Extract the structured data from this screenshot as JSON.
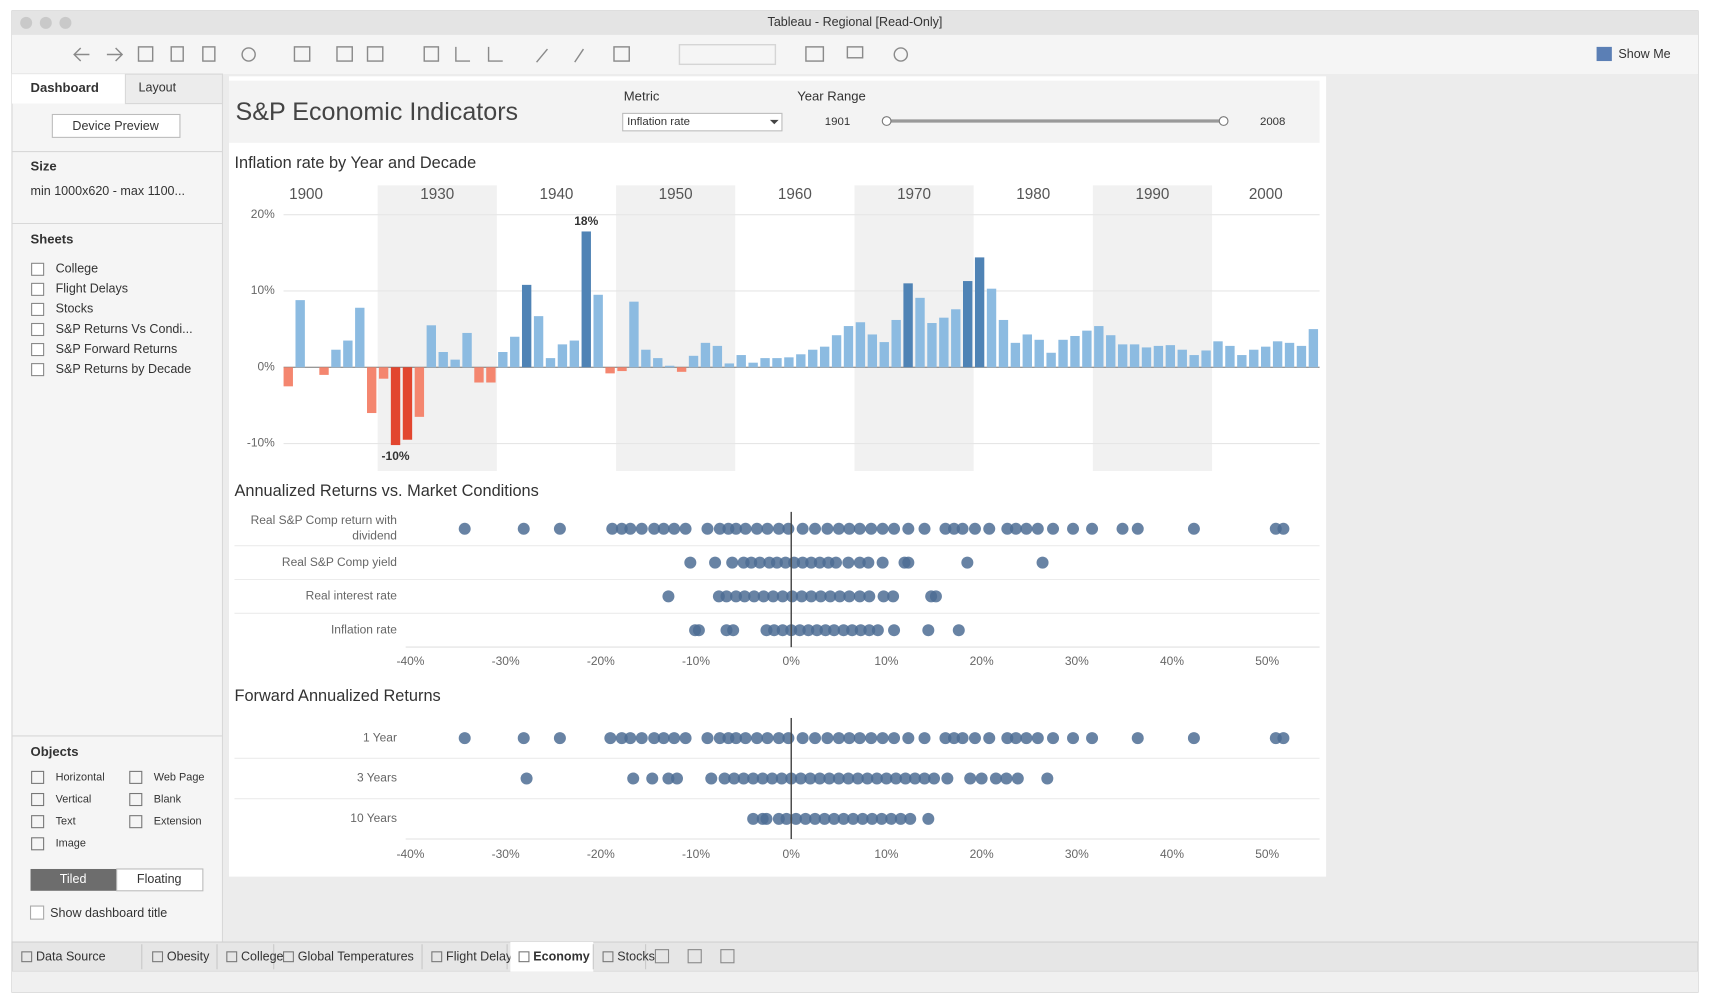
{
  "window": {
    "title": "Tableau - Regional [Read-Only]",
    "show_me": "Show Me"
  },
  "sidebar": {
    "tabs": [
      "Dashboard",
      "Layout"
    ],
    "device_preview": "Device Preview",
    "size_heading": "Size",
    "size_value": "min 1000x620 - max 1100...",
    "sheets_heading": "Sheets",
    "sheets": [
      "College",
      "Flight Delays",
      "Stocks",
      "S&P Returns Vs Condi...",
      "S&P Forward Returns",
      "S&P Returns by Decade"
    ],
    "objects_heading": "Objects",
    "objects": [
      "Horizontal",
      "Web Page",
      "Vertical",
      "Blank",
      "Text",
      "Extension",
      "Image"
    ],
    "modes": [
      "Tiled",
      "Floating"
    ],
    "show_title": "Show dashboard title"
  },
  "dashboard": {
    "title": "S&P Economic Indicators",
    "metric_label": "Metric",
    "metric_value": "Inflation rate",
    "year_range_label": "Year Range",
    "year_range": [
      1901,
      2008
    ]
  },
  "chart_data": [
    {
      "type": "bar",
      "title": "Inflation rate by Year and Decade",
      "ylim": [
        -13.6,
        21.7
      ],
      "yticks": [
        {
          "value": -10,
          "label": "-10%"
        },
        {
          "value": 0,
          "label": "0%"
        },
        {
          "value": 10,
          "label": "10%"
        },
        {
          "value": 20,
          "label": "20%"
        }
      ],
      "grid": true,
      "decades": [
        {
          "label": "1900",
          "values": [
            null,
            null,
            -2.5,
            8.8,
            null,
            -1,
            2.3,
            3.5,
            7.8,
            -6
          ],
          "colors": [
            null,
            null,
            "#f4866f",
            "#8cbbe1",
            null,
            "#f4866f",
            "#8cbbe1",
            "#8cbbe1",
            "#8cbbe1",
            "#f4866f"
          ]
        },
        {
          "label": "1930",
          "values": [
            -1.5,
            -10.2,
            -9.5,
            -6.5,
            5.5,
            2,
            1,
            4.5,
            -2,
            -2
          ],
          "colors": [
            "#f4866f",
            "#e2462f",
            "#e2462f",
            "#f4866f",
            "#8cbbe1",
            "#8cbbe1",
            "#8cbbe1",
            "#8cbbe1",
            "#f4866f",
            "#f4866f"
          ],
          "value_labels": [
            null,
            "-10%",
            null,
            null,
            null,
            null,
            null,
            null,
            null,
            null
          ]
        },
        {
          "label": "1940",
          "values": [
            2,
            4,
            10.8,
            6.7,
            1.2,
            3,
            3.5,
            17.8,
            9.5,
            -0.8
          ],
          "colors": [
            "#8cbbe1",
            "#8cbbe1",
            "#4f83b5",
            "#8cbbe1",
            "#8cbbe1",
            "#8cbbe1",
            "#8cbbe1",
            "#4f83b5",
            "#8cbbe1",
            "#f4866f"
          ],
          "value_labels": [
            null,
            null,
            null,
            null,
            null,
            null,
            null,
            "18%",
            null,
            null
          ]
        },
        {
          "label": "1950",
          "values": [
            -0.5,
            8.6,
            2.3,
            1.2,
            0.2,
            -0.6,
            1.5,
            3.2,
            2.8,
            0.5
          ],
          "colors": [
            "#f4866f",
            "#8cbbe1",
            "#8cbbe1",
            "#8cbbe1",
            "#8cbbe1",
            "#f4866f",
            "#8cbbe1",
            "#8cbbe1",
            "#8cbbe1",
            "#8cbbe1"
          ]
        },
        {
          "label": "1960",
          "values": [
            1.6,
            0.6,
            1.2,
            1.2,
            1.3,
            1.7,
            2.3,
            2.7,
            4.2,
            5.4
          ],
          "colors": [
            "#8cbbe1",
            "#8cbbe1",
            "#8cbbe1",
            "#8cbbe1",
            "#8cbbe1",
            "#8cbbe1",
            "#8cbbe1",
            "#8cbbe1",
            "#8cbbe1",
            "#8cbbe1"
          ]
        },
        {
          "label": "1970",
          "values": [
            5.9,
            4.3,
            3.3,
            6.2,
            11,
            9.1,
            5.8,
            6.5,
            7.6,
            11.3
          ],
          "colors": [
            "#8cbbe1",
            "#8cbbe1",
            "#8cbbe1",
            "#8cbbe1",
            "#4f83b5",
            "#8cbbe1",
            "#8cbbe1",
            "#8cbbe1",
            "#8cbbe1",
            "#4f83b5"
          ]
        },
        {
          "label": "1980",
          "values": [
            14.4,
            10.3,
            6.2,
            3.2,
            4.3,
            3.6,
            1.9,
            3.6,
            4.1,
            4.8
          ],
          "colors": [
            "#4f83b5",
            "#8cbbe1",
            "#8cbbe1",
            "#8cbbe1",
            "#8cbbe1",
            "#8cbbe1",
            "#8cbbe1",
            "#8cbbe1",
            "#8cbbe1",
            "#8cbbe1"
          ]
        },
        {
          "label": "1990",
          "values": [
            5.4,
            4.2,
            3,
            3,
            2.6,
            2.8,
            2.9,
            2.3,
            1.6,
            2.2
          ],
          "colors": [
            "#8cbbe1",
            "#8cbbe1",
            "#8cbbe1",
            "#8cbbe1",
            "#8cbbe1",
            "#8cbbe1",
            "#8cbbe1",
            "#8cbbe1",
            "#8cbbe1",
            "#8cbbe1"
          ]
        },
        {
          "label": "2000",
          "values": [
            3.4,
            2.8,
            1.6,
            2.3,
            2.7,
            3.4,
            3.2,
            2.8,
            5
          ],
          "colors": [
            "#8cbbe1",
            "#8cbbe1",
            "#8cbbe1",
            "#8cbbe1",
            "#8cbbe1",
            "#8cbbe1",
            "#8cbbe1",
            "#8cbbe1",
            "#8cbbe1"
          ]
        }
      ]
    },
    {
      "type": "dot",
      "title": "Annualized Returns vs. Market Conditions",
      "color": "#4e6d94",
      "xlim": [
        -40.5,
        55.5
      ],
      "xticks": [
        {
          "value": -40,
          "label": "-40%"
        },
        {
          "value": -30,
          "label": "-30%"
        },
        {
          "value": -20,
          "label": "-20%"
        },
        {
          "value": -10,
          "label": "-10%"
        },
        {
          "value": 0,
          "label": "0%"
        },
        {
          "value": 10,
          "label": "10%"
        },
        {
          "value": 20,
          "label": "20%"
        },
        {
          "value": 30,
          "label": "30%"
        },
        {
          "value": 40,
          "label": "40%"
        },
        {
          "value": 50,
          "label": "50%"
        }
      ],
      "series": [
        {
          "name": "Real S&P Comp return with dividend",
          "values": [
            -34.3,
            -28.1,
            -24.3,
            -18.8,
            -17.8,
            -16.9,
            -15.7,
            -14.4,
            -13.4,
            -12.3,
            -11.1,
            -8.8,
            -7.5,
            -6.6,
            -5.8,
            -4.8,
            -3.6,
            -2.5,
            -1.3,
            -0.3,
            1.2,
            2.5,
            3.8,
            5,
            6.1,
            7.2,
            8.4,
            9.6,
            10.8,
            12.3,
            14,
            16.2,
            17.1,
            18,
            19.3,
            20.8,
            22.7,
            23.6,
            24.7,
            25.9,
            27.5,
            29.6,
            31.6,
            34.8,
            36.4,
            42.3,
            50.9,
            51.7
          ]
        },
        {
          "name": "Real S&P Comp yield",
          "values": [
            -10.6,
            -8,
            -6.2,
            -5,
            -4.2,
            -3.3,
            -2.3,
            -1.5,
            -0.6,
            0.3,
            1.2,
            2.1,
            3,
            3.9,
            4.7,
            6,
            7.2,
            8.1,
            9.6,
            11.9,
            12.3,
            18.5,
            26.4
          ]
        },
        {
          "name": "Real interest rate",
          "values": [
            -12.9,
            -7.6,
            -6.8,
            -5.8,
            -4.9,
            -3.9,
            -2.9,
            -1.9,
            -0.9,
            0.1,
            1.1,
            2.1,
            3.1,
            4.1,
            5.1,
            6.1,
            7.2,
            8.2,
            9.7,
            10.7,
            14.7,
            15.2
          ]
        },
        {
          "name": "Inflation rate",
          "values": [
            -10.1,
            -9.7,
            -6.8,
            -6.1,
            -2.6,
            -1.8,
            -0.9,
            0,
            0.9,
            1.8,
            2.7,
            3.6,
            4.5,
            5.5,
            6.4,
            7.3,
            8.2,
            9.1,
            10.8,
            14.4,
            17.6
          ]
        }
      ]
    },
    {
      "type": "dot",
      "title": "Forward Annualized Returns",
      "color": "#4e6d94",
      "xlim": [
        -40.5,
        55.5
      ],
      "xticks": [
        {
          "value": -40,
          "label": "-40%"
        },
        {
          "value": -30,
          "label": "-30%"
        },
        {
          "value": -20,
          "label": "-20%"
        },
        {
          "value": -10,
          "label": "-10%"
        },
        {
          "value": 0,
          "label": "0%"
        },
        {
          "value": 10,
          "label": "10%"
        },
        {
          "value": 20,
          "label": "20%"
        },
        {
          "value": 30,
          "label": "30%"
        },
        {
          "value": 40,
          "label": "40%"
        },
        {
          "value": 50,
          "label": "50%"
        }
      ],
      "series": [
        {
          "name": "1 Year",
          "values": [
            -34.3,
            -28.1,
            -24.3,
            -19,
            -17.8,
            -16.9,
            -15.7,
            -14.4,
            -13.4,
            -12.3,
            -11.1,
            -8.8,
            -7.5,
            -6.6,
            -5.8,
            -4.8,
            -3.6,
            -2.5,
            -1.3,
            -0.3,
            1.2,
            2.5,
            3.8,
            5,
            6.1,
            7.2,
            8.4,
            9.6,
            10.8,
            12.3,
            14,
            16.2,
            17.1,
            18,
            19.3,
            20.8,
            22.7,
            23.6,
            24.7,
            25.9,
            27.5,
            29.6,
            31.6,
            36.4,
            42.3,
            50.9,
            51.7
          ]
        },
        {
          "name": "3 Years",
          "values": [
            -27.8,
            -16.6,
            -14.6,
            -12.9,
            -12,
            -8.4,
            -7,
            -6,
            -5,
            -4,
            -3,
            -2,
            -1,
            0,
            1,
            2,
            3,
            4,
            5,
            6,
            7,
            8,
            9,
            10,
            11,
            12,
            13,
            14,
            15,
            16.4,
            18.8,
            20,
            21.5,
            22.6,
            23.8,
            26.9
          ]
        },
        {
          "name": "10 Years",
          "values": [
            -4,
            -3,
            -2.6,
            -1.3,
            -0.5,
            0.5,
            1.5,
            2.5,
            3.5,
            4.5,
            5.5,
            6.5,
            7.5,
            8.5,
            9.5,
            10.5,
            11.5,
            12.5,
            14.4
          ]
        }
      ]
    }
  ],
  "tabs": [
    "Data Source",
    "Obesity",
    "College",
    "Global Temperatures",
    "Flight Delays",
    "Economy",
    "Stocks"
  ],
  "active_tab": 5
}
